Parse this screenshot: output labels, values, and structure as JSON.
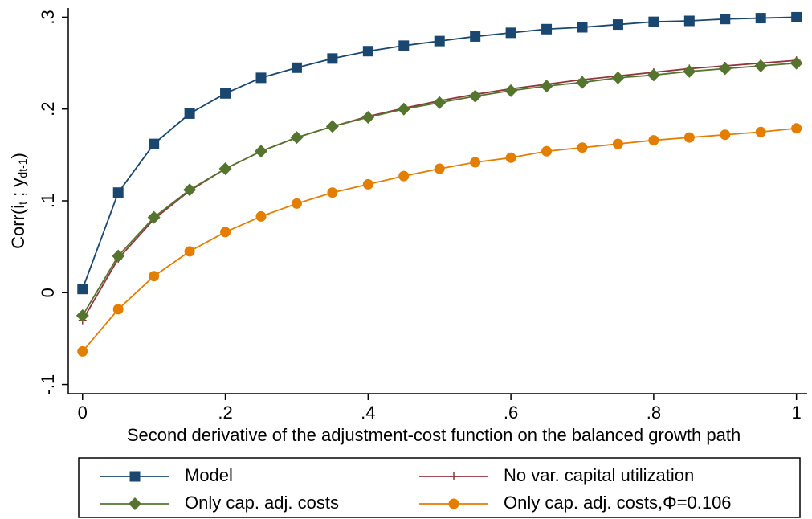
{
  "chart_data": {
    "type": "line",
    "xlabel": "Second derivative of the adjustment-cost function on the balanced growth path",
    "ylabel": [
      "Corr(i",
      "t",
      " ; y",
      "dt-1",
      ")"
    ],
    "x": [
      0,
      0.05,
      0.1,
      0.15,
      0.2,
      0.25,
      0.3,
      0.35,
      0.4,
      0.45,
      0.5,
      0.55,
      0.6,
      0.65,
      0.7,
      0.75,
      0.8,
      0.85,
      0.9,
      0.95,
      1
    ],
    "xlim": [
      -0.02,
      1.015
    ],
    "xticks": [
      0,
      {
        "value": 0.2,
        "label": ".2"
      },
      {
        "value": 0.4,
        "label": ".4"
      },
      {
        "value": 0.6,
        "label": ".6"
      },
      {
        "value": 0.8,
        "label": ".8"
      },
      1
    ],
    "ylim": [
      -0.11,
      0.31
    ],
    "yticks": [
      {
        "value": -0.1,
        "label": "-.1"
      },
      0,
      {
        "value": 0.1,
        "label": ".1"
      },
      {
        "value": 0.2,
        "label": ".2"
      },
      {
        "value": 0.3,
        "label": ".3"
      }
    ],
    "series": [
      {
        "name": "Model",
        "color": "#1a476f",
        "marker": "square",
        "values": [
          0.004,
          0.109,
          0.162,
          0.195,
          0.217,
          0.234,
          0.245,
          0.255,
          0.263,
          0.269,
          0.274,
          0.279,
          0.283,
          0.287,
          0.289,
          0.292,
          0.295,
          0.296,
          0.298,
          0.299,
          0.3
        ]
      },
      {
        "name": "No var. capital utilization",
        "color": "#90353b",
        "marker": "plus",
        "values": [
          -0.03,
          0.037,
          0.08,
          0.111,
          0.135,
          0.154,
          0.169,
          0.181,
          0.192,
          0.201,
          0.209,
          0.216,
          0.222,
          0.227,
          0.232,
          0.236,
          0.24,
          0.244,
          0.247,
          0.25,
          0.253
        ]
      },
      {
        "name": "Only cap. adj. costs",
        "color": "#55752f",
        "marker": "diamond",
        "values": [
          -0.025,
          0.04,
          0.082,
          0.112,
          0.135,
          0.154,
          0.169,
          0.181,
          0.191,
          0.2,
          0.207,
          0.214,
          0.22,
          0.225,
          0.229,
          0.234,
          0.237,
          0.241,
          0.244,
          0.247,
          0.25
        ]
      },
      {
        "name": "Only cap. adj. costs,Φ=0.106",
        "color": "#e37e00",
        "marker": "circle",
        "values": [
          -0.064,
          -0.018,
          0.018,
          0.045,
          0.066,
          0.083,
          0.097,
          0.109,
          0.118,
          0.127,
          0.135,
          0.142,
          0.147,
          0.154,
          0.158,
          0.162,
          0.166,
          0.169,
          0.172,
          0.175,
          0.179
        ]
      }
    ],
    "legend": "bottom"
  }
}
